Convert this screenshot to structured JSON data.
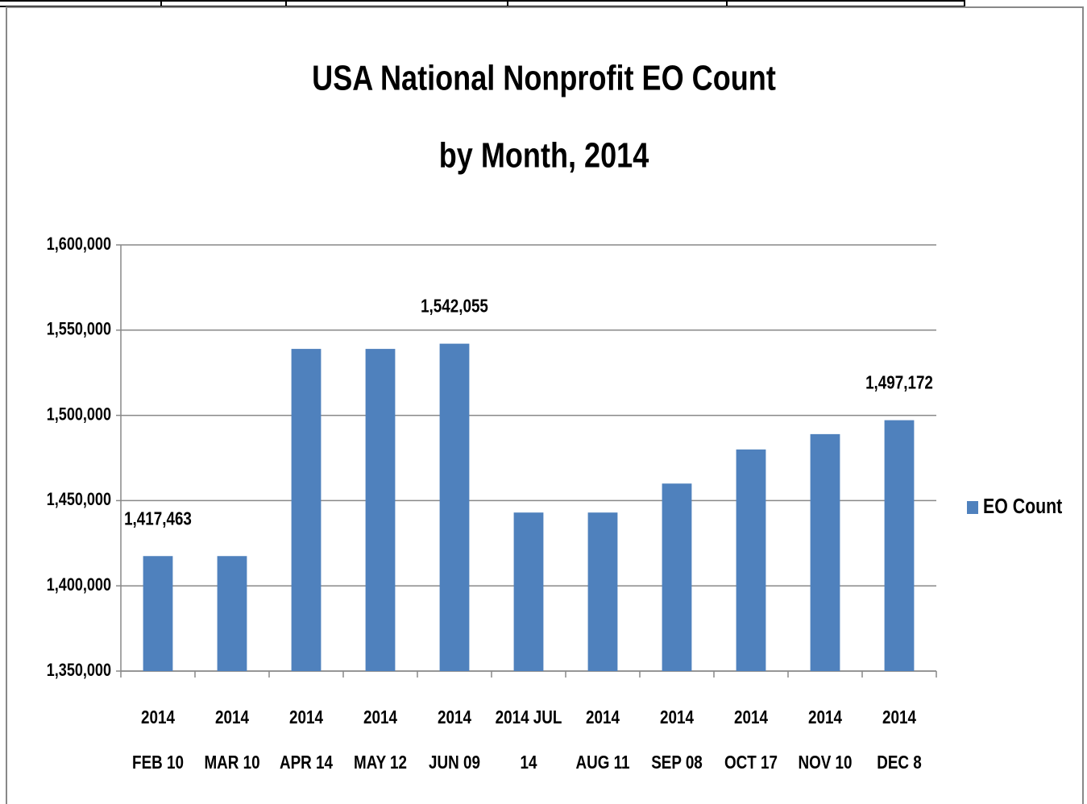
{
  "chart_data": {
    "type": "bar",
    "title": [
      "USA National Nonprofit EO Count",
      "by Month, 2014"
    ],
    "categories": [
      [
        "2014",
        "FEB 10"
      ],
      [
        "2014",
        "MAR 10"
      ],
      [
        "2014",
        "APR 14"
      ],
      [
        "2014",
        "MAY 12"
      ],
      [
        "2014",
        "JUN 09"
      ],
      [
        "2014 JUL",
        "14"
      ],
      [
        "2014",
        "AUG 11"
      ],
      [
        "2014",
        "SEP 08"
      ],
      [
        "2014",
        "OCT 17"
      ],
      [
        "2014",
        "NOV 10"
      ],
      [
        "2014",
        "DEC 8"
      ]
    ],
    "series": [
      {
        "name": "EO Count",
        "color": "#4f81bd",
        "values": [
          1417463,
          1417463,
          1539000,
          1539000,
          1542055,
          1443000,
          1443000,
          1460000,
          1480000,
          1489000,
          1497172
        ],
        "value_labels": [
          "1,417,463",
          null,
          null,
          null,
          "1,542,055",
          null,
          null,
          null,
          null,
          null,
          "1,497,172"
        ]
      }
    ],
    "ylim": [
      1350000,
      1600000
    ],
    "yticks": [
      {
        "value": 1350000,
        "label": "1,350,000"
      },
      {
        "value": 1400000,
        "label": "1,400,000"
      },
      {
        "value": 1450000,
        "label": "1,450,000"
      },
      {
        "value": 1500000,
        "label": "1,500,000"
      },
      {
        "value": 1550000,
        "label": "1,550,000"
      },
      {
        "value": 1600000,
        "label": "1,600,000"
      }
    ],
    "grid": true,
    "legend": "right"
  }
}
